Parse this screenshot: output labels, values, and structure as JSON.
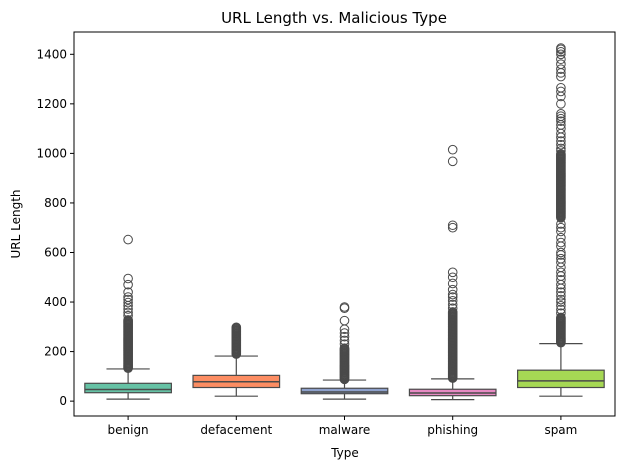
{
  "chart_data": {
    "type": "box",
    "title": "URL Length vs. Malicious Type",
    "xlabel": "Type",
    "ylabel": "URL Length",
    "ylim": [
      -60,
      1490
    ],
    "yticks": [
      0,
      200,
      400,
      600,
      800,
      1000,
      1200,
      1400
    ],
    "grid": false,
    "categories": [
      "benign",
      "defacement",
      "malware",
      "phishing",
      "spam"
    ],
    "colors": [
      "#66c2a5",
      "#fc8d62",
      "#8da0cb",
      "#e78ac3",
      "#a6d854"
    ],
    "boxes": [
      {
        "name": "benign",
        "whislo": 8,
        "q1": 34,
        "med": 47,
        "q3": 72,
        "whishi": 130,
        "fliers_dense": [
          [
            133,
            330
          ]
        ],
        "fliers": [
          345,
          358,
          372,
          385,
          398,
          410,
          420,
          440,
          470,
          495,
          652
        ]
      },
      {
        "name": "defacement",
        "whislo": 20,
        "q1": 55,
        "med": 78,
        "q3": 104,
        "whishi": 182,
        "fliers_dense": [
          [
            190,
            298
          ]
        ],
        "fliers": []
      },
      {
        "name": "malware",
        "whislo": 8,
        "q1": 30,
        "med": 37,
        "q3": 52,
        "whishi": 85,
        "fliers_dense": [
          [
            88,
            215
          ]
        ],
        "fliers": [
          230,
          245,
          260,
          275,
          290,
          325,
          375,
          380
        ]
      },
      {
        "name": "phishing",
        "whislo": 6,
        "q1": 22,
        "med": 33,
        "q3": 48,
        "whishi": 90,
        "fliers_dense": [
          [
            93,
            360
          ]
        ],
        "fliers": [
          375,
          390,
          405,
          420,
          430,
          450,
          475,
          500,
          520,
          700,
          710,
          968,
          1015
        ]
      },
      {
        "name": "spam",
        "whislo": 20,
        "q1": 55,
        "med": 82,
        "q3": 125,
        "whishi": 232,
        "fliers_dense": [
          [
            236,
            340
          ],
          [
            740,
            1000
          ]
        ],
        "fliers": [
          355,
          370,
          385,
          400,
          410,
          425,
          440,
          455,
          470,
          490,
          505,
          520,
          540,
          560,
          575,
          590,
          600,
          625,
          640,
          660,
          685,
          700,
          715,
          1010,
          1020,
          1035,
          1050,
          1065,
          1080,
          1100,
          1115,
          1130,
          1140,
          1150,
          1160,
          1200,
          1230,
          1250,
          1265,
          1310,
          1325,
          1340,
          1360,
          1380,
          1400,
          1410,
          1420,
          1425
        ]
      }
    ]
  }
}
